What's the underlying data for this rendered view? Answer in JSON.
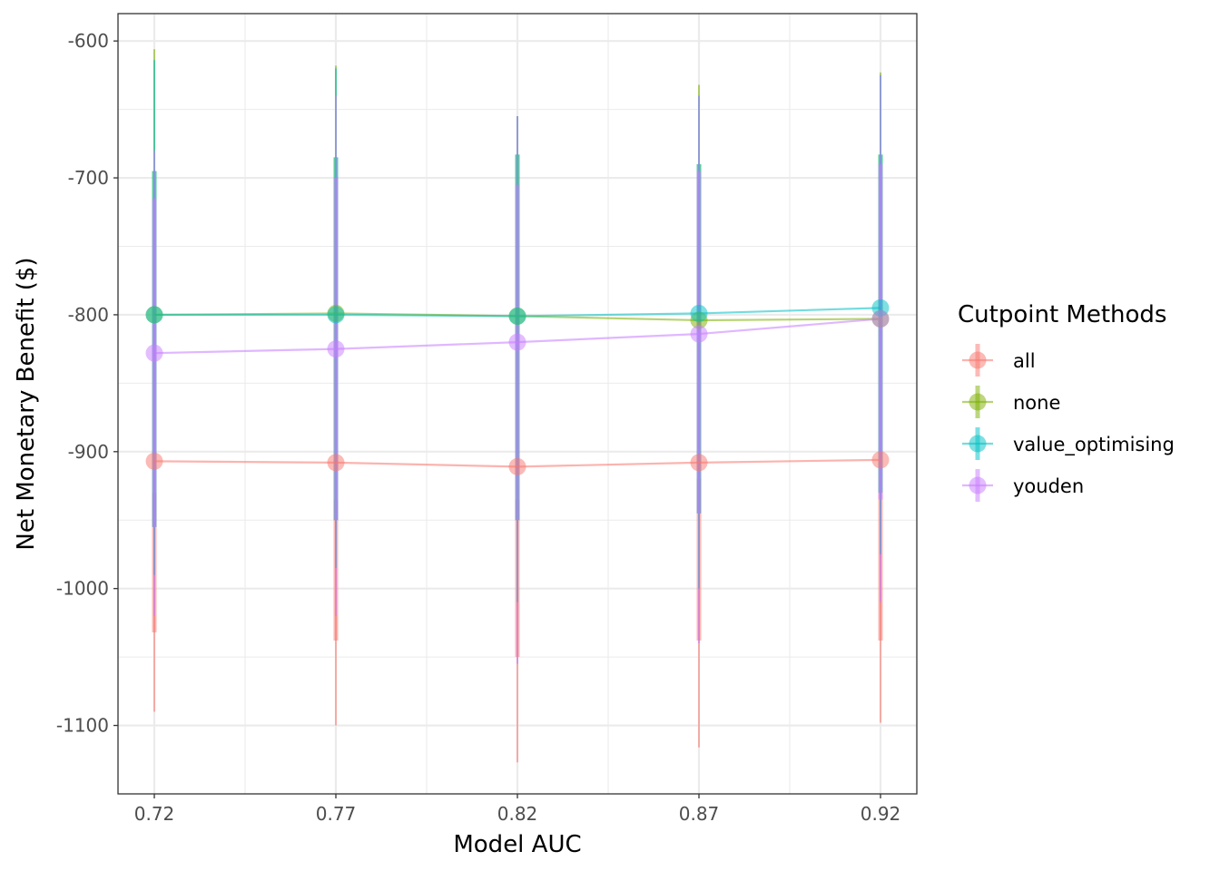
{
  "chart_data": {
    "type": "line",
    "xlabel": "Model AUC",
    "ylabel": "Net Monetary Benefit ($)",
    "x": [
      0.72,
      0.77,
      0.82,
      0.87,
      0.92
    ],
    "x_tick_labels": [
      "0.72",
      "0.77",
      "0.82",
      "0.87",
      "0.92"
    ],
    "xlim": [
      0.71,
      0.93
    ],
    "ylim": [
      -1150,
      -580
    ],
    "y_ticks": [
      -600,
      -700,
      -800,
      -900,
      -1000,
      -1100
    ],
    "y_tick_labels": [
      "-600",
      "-700",
      "-800",
      "-900",
      "-1000",
      "-1100"
    ],
    "grid": true,
    "legend": {
      "title": "Cutpoint Methods",
      "position": "right"
    },
    "series": [
      {
        "name": "all",
        "color": "#F8766D",
        "values": [
          -907,
          -908,
          -911,
          -908,
          -906
        ],
        "inner_low": [
          -1032,
          -1038,
          -1050,
          -1038,
          -1038
        ],
        "inner_high": [
          -930,
          -935,
          -935,
          -920,
          -930
        ],
        "outer_low": [
          -1090,
          -1100,
          -1127,
          -1116,
          -1098
        ],
        "outer_high": [
          -915,
          -920,
          -925,
          -910,
          -920
        ]
      },
      {
        "name": "none",
        "color": "#7CAE00",
        "values": [
          -800,
          -799,
          -801,
          -804,
          -803
        ],
        "inner_low": [
          -955,
          -950,
          -950,
          -945,
          -930
        ],
        "inner_high": [
          -695,
          -685,
          -683,
          -690,
          -683
        ],
        "outer_low": [
          -990,
          -985,
          -1010,
          -1000,
          -975
        ],
        "outer_high": [
          -606,
          -618,
          -655,
          -632,
          -623
        ]
      },
      {
        "name": "value_optimising",
        "color": "#00BFC4",
        "values": [
          -800,
          -800,
          -801,
          -799,
          -795
        ],
        "inner_low": [
          -955,
          -950,
          -950,
          -945,
          -930
        ],
        "inner_high": [
          -695,
          -685,
          -683,
          -690,
          -683
        ],
        "outer_low": [
          -990,
          -985,
          -1010,
          -1000,
          -975
        ],
        "outer_high": [
          -614,
          -620,
          -655,
          -640,
          -625
        ]
      },
      {
        "name": "youden",
        "color": "#C77CFF",
        "values": [
          -828,
          -825,
          -820,
          -814,
          -803
        ],
        "inner_low": [
          -955,
          -950,
          -950,
          -945,
          -935
        ],
        "inner_high": [
          -715,
          -700,
          -705,
          -695,
          -690
        ],
        "outer_low": [
          -1020,
          -1020,
          -1055,
          -1040,
          -1010
        ],
        "outer_high": [
          -680,
          -640,
          -655,
          -640,
          -625
        ]
      }
    ]
  }
}
